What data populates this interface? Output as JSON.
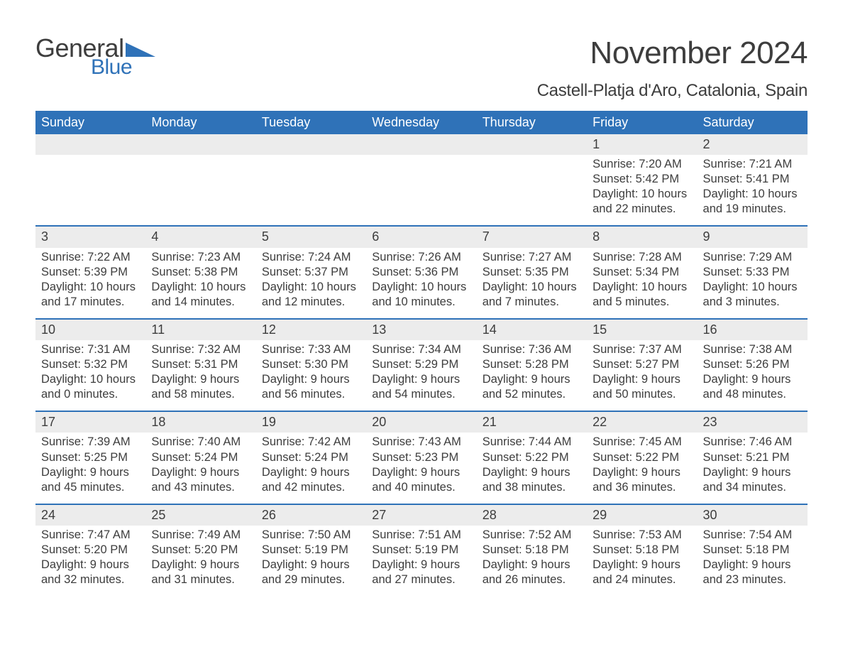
{
  "brand": {
    "word1": "General",
    "word2": "Blue",
    "word1_color": "#3d3d3d",
    "word2_color": "#2f72b8",
    "triangle_color": "#2f72b8"
  },
  "title": "November 2024",
  "location": "Castell-Platja d'Aro, Catalonia, Spain",
  "colors": {
    "header_bg": "#2f72b8",
    "header_text": "#ffffff",
    "daynum_bg": "#ececec",
    "text": "#3d3d3d",
    "rule": "#2f72b8",
    "page_bg": "#ffffff"
  },
  "typography": {
    "title_fontsize": 44,
    "location_fontsize": 24,
    "dow_fontsize": 18,
    "body_fontsize": 16.5,
    "font_family": "Arial"
  },
  "days_of_week": [
    "Sunday",
    "Monday",
    "Tuesday",
    "Wednesday",
    "Thursday",
    "Friday",
    "Saturday"
  ],
  "weeks": [
    [
      {
        "empty": true
      },
      {
        "empty": true
      },
      {
        "empty": true
      },
      {
        "empty": true
      },
      {
        "empty": true
      },
      {
        "num": "1",
        "sunrise": "Sunrise: 7:20 AM",
        "sunset": "Sunset: 5:42 PM",
        "day1": "Daylight: 10 hours",
        "day2": "and 22 minutes."
      },
      {
        "num": "2",
        "sunrise": "Sunrise: 7:21 AM",
        "sunset": "Sunset: 5:41 PM",
        "day1": "Daylight: 10 hours",
        "day2": "and 19 minutes."
      }
    ],
    [
      {
        "num": "3",
        "sunrise": "Sunrise: 7:22 AM",
        "sunset": "Sunset: 5:39 PM",
        "day1": "Daylight: 10 hours",
        "day2": "and 17 minutes."
      },
      {
        "num": "4",
        "sunrise": "Sunrise: 7:23 AM",
        "sunset": "Sunset: 5:38 PM",
        "day1": "Daylight: 10 hours",
        "day2": "and 14 minutes."
      },
      {
        "num": "5",
        "sunrise": "Sunrise: 7:24 AM",
        "sunset": "Sunset: 5:37 PM",
        "day1": "Daylight: 10 hours",
        "day2": "and 12 minutes."
      },
      {
        "num": "6",
        "sunrise": "Sunrise: 7:26 AM",
        "sunset": "Sunset: 5:36 PM",
        "day1": "Daylight: 10 hours",
        "day2": "and 10 minutes."
      },
      {
        "num": "7",
        "sunrise": "Sunrise: 7:27 AM",
        "sunset": "Sunset: 5:35 PM",
        "day1": "Daylight: 10 hours",
        "day2": "and 7 minutes."
      },
      {
        "num": "8",
        "sunrise": "Sunrise: 7:28 AM",
        "sunset": "Sunset: 5:34 PM",
        "day1": "Daylight: 10 hours",
        "day2": "and 5 minutes."
      },
      {
        "num": "9",
        "sunrise": "Sunrise: 7:29 AM",
        "sunset": "Sunset: 5:33 PM",
        "day1": "Daylight: 10 hours",
        "day2": "and 3 minutes."
      }
    ],
    [
      {
        "num": "10",
        "sunrise": "Sunrise: 7:31 AM",
        "sunset": "Sunset: 5:32 PM",
        "day1": "Daylight: 10 hours",
        "day2": "and 0 minutes."
      },
      {
        "num": "11",
        "sunrise": "Sunrise: 7:32 AM",
        "sunset": "Sunset: 5:31 PM",
        "day1": "Daylight: 9 hours",
        "day2": "and 58 minutes."
      },
      {
        "num": "12",
        "sunrise": "Sunrise: 7:33 AM",
        "sunset": "Sunset: 5:30 PM",
        "day1": "Daylight: 9 hours",
        "day2": "and 56 minutes."
      },
      {
        "num": "13",
        "sunrise": "Sunrise: 7:34 AM",
        "sunset": "Sunset: 5:29 PM",
        "day1": "Daylight: 9 hours",
        "day2": "and 54 minutes."
      },
      {
        "num": "14",
        "sunrise": "Sunrise: 7:36 AM",
        "sunset": "Sunset: 5:28 PM",
        "day1": "Daylight: 9 hours",
        "day2": "and 52 minutes."
      },
      {
        "num": "15",
        "sunrise": "Sunrise: 7:37 AM",
        "sunset": "Sunset: 5:27 PM",
        "day1": "Daylight: 9 hours",
        "day2": "and 50 minutes."
      },
      {
        "num": "16",
        "sunrise": "Sunrise: 7:38 AM",
        "sunset": "Sunset: 5:26 PM",
        "day1": "Daylight: 9 hours",
        "day2": "and 48 minutes."
      }
    ],
    [
      {
        "num": "17",
        "sunrise": "Sunrise: 7:39 AM",
        "sunset": "Sunset: 5:25 PM",
        "day1": "Daylight: 9 hours",
        "day2": "and 45 minutes."
      },
      {
        "num": "18",
        "sunrise": "Sunrise: 7:40 AM",
        "sunset": "Sunset: 5:24 PM",
        "day1": "Daylight: 9 hours",
        "day2": "and 43 minutes."
      },
      {
        "num": "19",
        "sunrise": "Sunrise: 7:42 AM",
        "sunset": "Sunset: 5:24 PM",
        "day1": "Daylight: 9 hours",
        "day2": "and 42 minutes."
      },
      {
        "num": "20",
        "sunrise": "Sunrise: 7:43 AM",
        "sunset": "Sunset: 5:23 PM",
        "day1": "Daylight: 9 hours",
        "day2": "and 40 minutes."
      },
      {
        "num": "21",
        "sunrise": "Sunrise: 7:44 AM",
        "sunset": "Sunset: 5:22 PM",
        "day1": "Daylight: 9 hours",
        "day2": "and 38 minutes."
      },
      {
        "num": "22",
        "sunrise": "Sunrise: 7:45 AM",
        "sunset": "Sunset: 5:22 PM",
        "day1": "Daylight: 9 hours",
        "day2": "and 36 minutes."
      },
      {
        "num": "23",
        "sunrise": "Sunrise: 7:46 AM",
        "sunset": "Sunset: 5:21 PM",
        "day1": "Daylight: 9 hours",
        "day2": "and 34 minutes."
      }
    ],
    [
      {
        "num": "24",
        "sunrise": "Sunrise: 7:47 AM",
        "sunset": "Sunset: 5:20 PM",
        "day1": "Daylight: 9 hours",
        "day2": "and 32 minutes."
      },
      {
        "num": "25",
        "sunrise": "Sunrise: 7:49 AM",
        "sunset": "Sunset: 5:20 PM",
        "day1": "Daylight: 9 hours",
        "day2": "and 31 minutes."
      },
      {
        "num": "26",
        "sunrise": "Sunrise: 7:50 AM",
        "sunset": "Sunset: 5:19 PM",
        "day1": "Daylight: 9 hours",
        "day2": "and 29 minutes."
      },
      {
        "num": "27",
        "sunrise": "Sunrise: 7:51 AM",
        "sunset": "Sunset: 5:19 PM",
        "day1": "Daylight: 9 hours",
        "day2": "and 27 minutes."
      },
      {
        "num": "28",
        "sunrise": "Sunrise: 7:52 AM",
        "sunset": "Sunset: 5:18 PM",
        "day1": "Daylight: 9 hours",
        "day2": "and 26 minutes."
      },
      {
        "num": "29",
        "sunrise": "Sunrise: 7:53 AM",
        "sunset": "Sunset: 5:18 PM",
        "day1": "Daylight: 9 hours",
        "day2": "and 24 minutes."
      },
      {
        "num": "30",
        "sunrise": "Sunrise: 7:54 AM",
        "sunset": "Sunset: 5:18 PM",
        "day1": "Daylight: 9 hours",
        "day2": "and 23 minutes."
      }
    ]
  ]
}
